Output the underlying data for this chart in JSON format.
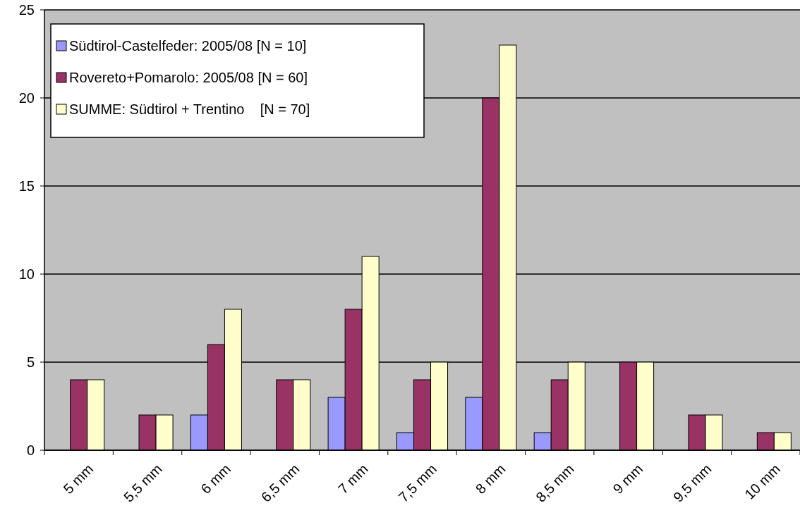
{
  "chart_data": {
    "type": "bar",
    "categories": [
      "5 mm",
      "5,5 mm",
      "6 mm",
      "6,5 mm",
      "7 mm",
      "7,5 mm",
      "8 mm",
      "8,5 mm",
      "9 mm",
      "9,5 mm",
      "10 mm"
    ],
    "series": [
      {
        "name": "Südtirol-Castelfeder: 2005/08 [N = 10]",
        "color": "#9999ff",
        "values": [
          0,
          0,
          2,
          0,
          3,
          1,
          3,
          1,
          0,
          0,
          0
        ]
      },
      {
        "name": "Rovereto+Pomarolo: 2005/08 [N = 60]",
        "color": "#993366",
        "values": [
          4,
          2,
          6,
          4,
          8,
          4,
          20,
          4,
          5,
          2,
          1
        ]
      },
      {
        "name": "SUMME: Südtirol + Trentino    [N = 70]",
        "color": "#ffffcc",
        "values": [
          4,
          2,
          8,
          4,
          11,
          5,
          23,
          5,
          5,
          2,
          1
        ]
      }
    ],
    "ylim": [
      0,
      25
    ],
    "yticks": [
      0,
      5,
      10,
      15,
      20,
      25
    ],
    "grid": "y",
    "legend": "top left"
  }
}
